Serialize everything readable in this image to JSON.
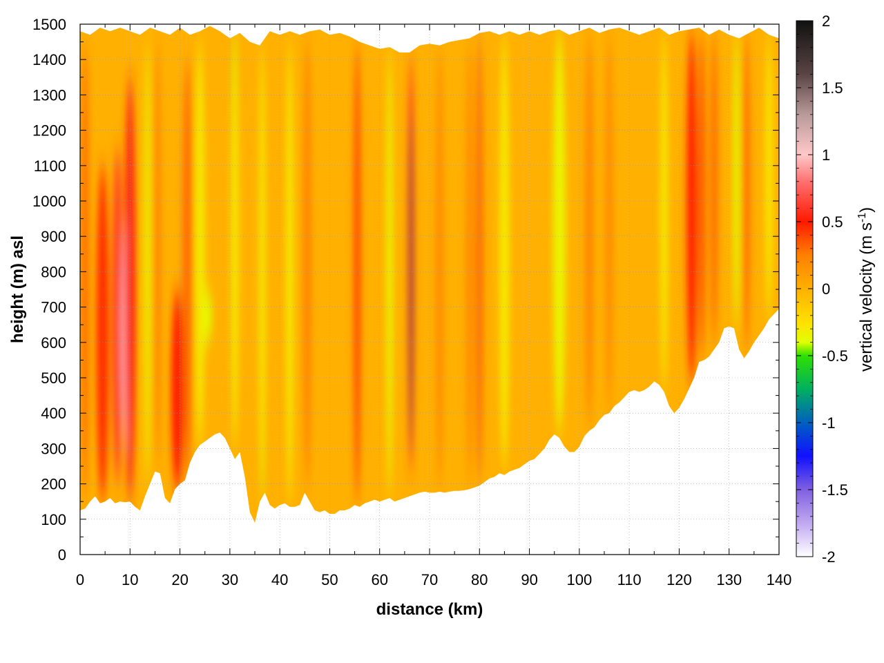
{
  "chart_data": {
    "type": "heatmap",
    "title": "",
    "xlabel": "distance (km)",
    "ylabel": "height (m) asl",
    "xlim": [
      0,
      140
    ],
    "ylim": [
      0,
      1500
    ],
    "x_ticks": [
      0,
      10,
      20,
      30,
      40,
      50,
      60,
      70,
      80,
      90,
      100,
      110,
      120,
      130,
      140
    ],
    "y_ticks": [
      0,
      100,
      200,
      300,
      400,
      500,
      600,
      700,
      800,
      900,
      1000,
      1100,
      1200,
      1300,
      1400,
      1500
    ],
    "grid": true,
    "colorbar": {
      "label_main": "vertical velocity (m s",
      "label_sup": "-1",
      "label_end": ")",
      "range": [
        -2,
        2
      ],
      "ticks": [
        "2",
        "1.5",
        "1",
        "0.5",
        "0",
        "-0.5",
        "-1",
        "-1.5",
        "-2"
      ],
      "tick_values": [
        2,
        1.5,
        1,
        0.5,
        0,
        -0.5,
        -1,
        -1.5,
        -2
      ],
      "stops": [
        {
          "value": 2.0,
          "color": "#111111"
        },
        {
          "value": 1.6,
          "color": "#5a4444"
        },
        {
          "value": 1.3,
          "color": "#b89a9a"
        },
        {
          "value": 1.0,
          "color": "#ffc8c8"
        },
        {
          "value": 0.8,
          "color": "#ff7070"
        },
        {
          "value": 0.5,
          "color": "#ff1a00"
        },
        {
          "value": 0.25,
          "color": "#ff8000"
        },
        {
          "value": 0.0,
          "color": "#ffb000"
        },
        {
          "value": -0.25,
          "color": "#ffe000"
        },
        {
          "value": -0.4,
          "color": "#e0ff00"
        },
        {
          "value": -0.5,
          "color": "#30e000"
        },
        {
          "value": -0.75,
          "color": "#00b060"
        },
        {
          "value": -1.0,
          "color": "#0060c0"
        },
        {
          "value": -1.25,
          "color": "#1010ff"
        },
        {
          "value": -1.5,
          "color": "#8060e0"
        },
        {
          "value": -1.75,
          "color": "#c0a8f0"
        },
        {
          "value": -2.0,
          "color": "#ffffff"
        }
      ]
    },
    "terrain_bottom": [
      [
        0,
        125
      ],
      [
        1,
        130
      ],
      [
        2,
        150
      ],
      [
        3,
        165
      ],
      [
        4,
        145
      ],
      [
        5,
        150
      ],
      [
        6,
        160
      ],
      [
        7,
        145
      ],
      [
        8,
        150
      ],
      [
        9,
        148
      ],
      [
        10,
        150
      ],
      [
        11,
        135
      ],
      [
        12,
        125
      ],
      [
        13,
        165
      ],
      [
        14,
        200
      ],
      [
        15,
        235
      ],
      [
        16,
        230
      ],
      [
        17,
        160
      ],
      [
        18,
        145
      ],
      [
        19,
        185
      ],
      [
        20,
        200
      ],
      [
        21,
        210
      ],
      [
        22,
        260
      ],
      [
        23,
        290
      ],
      [
        24,
        310
      ],
      [
        25,
        320
      ],
      [
        26,
        330
      ],
      [
        27,
        340
      ],
      [
        28,
        345
      ],
      [
        29,
        330
      ],
      [
        30,
        300
      ],
      [
        31,
        270
      ],
      [
        32,
        290
      ],
      [
        33,
        220
      ],
      [
        34,
        120
      ],
      [
        35,
        90
      ],
      [
        36,
        150
      ],
      [
        37,
        175
      ],
      [
        38,
        140
      ],
      [
        39,
        130
      ],
      [
        40,
        140
      ],
      [
        41,
        145
      ],
      [
        42,
        135
      ],
      [
        43,
        135
      ],
      [
        44,
        140
      ],
      [
        45,
        175
      ],
      [
        46,
        150
      ],
      [
        47,
        125
      ],
      [
        48,
        120
      ],
      [
        49,
        125
      ],
      [
        50,
        115
      ],
      [
        51,
        115
      ],
      [
        52,
        125
      ],
      [
        53,
        125
      ],
      [
        54,
        130
      ],
      [
        55,
        140
      ],
      [
        56,
        135
      ],
      [
        57,
        145
      ],
      [
        58,
        150
      ],
      [
        59,
        155
      ],
      [
        60,
        150
      ],
      [
        61,
        155
      ],
      [
        62,
        160
      ],
      [
        63,
        150
      ],
      [
        64,
        155
      ],
      [
        65,
        160
      ],
      [
        66,
        165
      ],
      [
        67,
        170
      ],
      [
        68,
        175
      ],
      [
        69,
        178
      ],
      [
        70,
        175
      ],
      [
        71,
        175
      ],
      [
        72,
        178
      ],
      [
        73,
        175
      ],
      [
        74,
        178
      ],
      [
        75,
        180
      ],
      [
        76,
        180
      ],
      [
        77,
        182
      ],
      [
        78,
        185
      ],
      [
        79,
        190
      ],
      [
        80,
        195
      ],
      [
        81,
        205
      ],
      [
        82,
        215
      ],
      [
        83,
        220
      ],
      [
        84,
        230
      ],
      [
        85,
        225
      ],
      [
        86,
        235
      ],
      [
        87,
        240
      ],
      [
        88,
        245
      ],
      [
        89,
        255
      ],
      [
        90,
        265
      ],
      [
        91,
        270
      ],
      [
        92,
        285
      ],
      [
        93,
        300
      ],
      [
        94,
        325
      ],
      [
        95,
        340
      ],
      [
        96,
        330
      ],
      [
        97,
        305
      ],
      [
        98,
        290
      ],
      [
        99,
        290
      ],
      [
        100,
        305
      ],
      [
        101,
        335
      ],
      [
        102,
        350
      ],
      [
        103,
        360
      ],
      [
        104,
        380
      ],
      [
        105,
        395
      ],
      [
        106,
        400
      ],
      [
        107,
        420
      ],
      [
        108,
        430
      ],
      [
        109,
        445
      ],
      [
        110,
        460
      ],
      [
        111,
        465
      ],
      [
        112,
        460
      ],
      [
        113,
        465
      ],
      [
        114,
        475
      ],
      [
        115,
        490
      ],
      [
        116,
        480
      ],
      [
        117,
        460
      ],
      [
        118,
        420
      ],
      [
        119,
        400
      ],
      [
        120,
        415
      ],
      [
        121,
        440
      ],
      [
        122,
        470
      ],
      [
        123,
        500
      ],
      [
        124,
        545
      ],
      [
        125,
        550
      ],
      [
        126,
        560
      ],
      [
        127,
        580
      ],
      [
        128,
        600
      ],
      [
        129,
        640
      ],
      [
        130,
        645
      ],
      [
        131,
        640
      ],
      [
        132,
        580
      ],
      [
        133,
        555
      ],
      [
        134,
        575
      ],
      [
        135,
        600
      ],
      [
        136,
        620
      ],
      [
        137,
        640
      ],
      [
        138,
        665
      ],
      [
        139,
        680
      ],
      [
        140,
        695
      ]
    ],
    "top_edge": [
      [
        0,
        1480
      ],
      [
        2,
        1470
      ],
      [
        4,
        1490
      ],
      [
        6,
        1480
      ],
      [
        8,
        1490
      ],
      [
        10,
        1480
      ],
      [
        12,
        1470
      ],
      [
        14,
        1490
      ],
      [
        16,
        1480
      ],
      [
        18,
        1470
      ],
      [
        20,
        1490
      ],
      [
        22,
        1470
      ],
      [
        24,
        1480
      ],
      [
        26,
        1495
      ],
      [
        28,
        1480
      ],
      [
        30,
        1460
      ],
      [
        32,
        1475
      ],
      [
        34,
        1450
      ],
      [
        36,
        1440
      ],
      [
        38,
        1480
      ],
      [
        40,
        1470
      ],
      [
        42,
        1480
      ],
      [
        44,
        1470
      ],
      [
        46,
        1480
      ],
      [
        48,
        1485
      ],
      [
        50,
        1470
      ],
      [
        52,
        1475
      ],
      [
        54,
        1465
      ],
      [
        56,
        1450
      ],
      [
        58,
        1440
      ],
      [
        60,
        1430
      ],
      [
        62,
        1435
      ],
      [
        64,
        1420
      ],
      [
        66,
        1420
      ],
      [
        68,
        1440
      ],
      [
        70,
        1445
      ],
      [
        72,
        1440
      ],
      [
        74,
        1450
      ],
      [
        76,
        1455
      ],
      [
        78,
        1460
      ],
      [
        80,
        1475
      ],
      [
        82,
        1480
      ],
      [
        84,
        1470
      ],
      [
        86,
        1480
      ],
      [
        88,
        1470
      ],
      [
        90,
        1480
      ],
      [
        92,
        1470
      ],
      [
        94,
        1480
      ],
      [
        96,
        1485
      ],
      [
        98,
        1470
      ],
      [
        100,
        1480
      ],
      [
        102,
        1490
      ],
      [
        104,
        1475
      ],
      [
        106,
        1485
      ],
      [
        108,
        1490
      ],
      [
        110,
        1480
      ],
      [
        112,
        1470
      ],
      [
        114,
        1480
      ],
      [
        116,
        1490
      ],
      [
        118,
        1470
      ],
      [
        120,
        1480
      ],
      [
        122,
        1485
      ],
      [
        124,
        1490
      ],
      [
        126,
        1470
      ],
      [
        128,
        1485
      ],
      [
        130,
        1470
      ],
      [
        132,
        1460
      ],
      [
        134,
        1475
      ],
      [
        136,
        1490
      ],
      [
        138,
        1470
      ],
      [
        140,
        1460
      ]
    ],
    "bands": [
      {
        "x": 1,
        "w": 1.5,
        "v": 0.3,
        "y0": 150,
        "y1": 1450
      },
      {
        "x": 4.5,
        "w": 2.5,
        "v": 0.45,
        "y0": 150,
        "y1": 1100
      },
      {
        "x": 7.5,
        "w": 2.0,
        "v": 0.6,
        "y0": 200,
        "y1": 1150
      },
      {
        "x": 9.5,
        "w": 2.5,
        "v": 1.0,
        "y0": 280,
        "y1": 1000
      },
      {
        "x": 10.0,
        "w": 2.2,
        "v": 0.55,
        "y0": 150,
        "y1": 1350
      },
      {
        "x": 13.5,
        "w": 1.2,
        "v": -0.35,
        "y0": 200,
        "y1": 1450
      },
      {
        "x": 15.5,
        "w": 1.2,
        "v": 0.25,
        "y0": 250,
        "y1": 1450
      },
      {
        "x": 19.5,
        "w": 2.5,
        "v": 0.5,
        "y0": 180,
        "y1": 750
      },
      {
        "x": 21.5,
        "w": 2.0,
        "v": 0.3,
        "y0": 200,
        "y1": 1400
      },
      {
        "x": 25,
        "w": 3.0,
        "v": -0.4,
        "y0": 600,
        "y1": 750
      },
      {
        "x": 24,
        "w": 2.0,
        "v": -0.3,
        "y0": 300,
        "y1": 1450
      },
      {
        "x": 31,
        "w": 1.2,
        "v": -0.45,
        "y0": 1050,
        "y1": 1480
      },
      {
        "x": 31,
        "w": 1.5,
        "v": -0.3,
        "y0": 300,
        "y1": 1480
      },
      {
        "x": 36.5,
        "w": 1.0,
        "v": -0.45,
        "y0": 150,
        "y1": 620
      },
      {
        "x": 36.5,
        "w": 1.3,
        "v": -0.3,
        "y0": 150,
        "y1": 1440
      },
      {
        "x": 42,
        "w": 1.5,
        "v": -0.3,
        "y0": 140,
        "y1": 1450
      },
      {
        "x": 45.5,
        "w": 1.5,
        "v": 0.25,
        "y0": 180,
        "y1": 1470
      },
      {
        "x": 55.5,
        "w": 1.3,
        "v": 0.4,
        "y0": 140,
        "y1": 1450
      },
      {
        "x": 62,
        "w": 1.3,
        "v": -0.35,
        "y0": 160,
        "y1": 1430
      },
      {
        "x": 66.3,
        "w": 1.3,
        "v": 0.6,
        "y0": 230,
        "y1": 1410
      },
      {
        "x": 66.3,
        "w": 0.7,
        "v": 1.6,
        "y0": 300,
        "y1": 1250
      },
      {
        "x": 72,
        "w": 1.5,
        "v": 0.2,
        "y0": 180,
        "y1": 1440
      },
      {
        "x": 78,
        "w": 1.5,
        "v": 0.2,
        "y0": 190,
        "y1": 1460
      },
      {
        "x": 80,
        "w": 1.5,
        "v": 0.3,
        "y0": 200,
        "y1": 1470
      },
      {
        "x": 85,
        "w": 2.0,
        "v": -0.3,
        "y0": 240,
        "y1": 1470
      },
      {
        "x": 96,
        "w": 2.5,
        "v": -0.35,
        "y0": 340,
        "y1": 1480
      },
      {
        "x": 102,
        "w": 1.5,
        "v": 0.25,
        "y0": 360,
        "y1": 1480
      },
      {
        "x": 106,
        "w": 1.5,
        "v": 0.2,
        "y0": 400,
        "y1": 1480
      },
      {
        "x": 117,
        "w": 1.5,
        "v": -0.3,
        "y0": 460,
        "y1": 1480
      },
      {
        "x": 122.5,
        "w": 2.0,
        "v": 0.5,
        "y0": 480,
        "y1": 1480
      },
      {
        "x": 124.5,
        "w": 1.5,
        "v": 0.35,
        "y0": 550,
        "y1": 1480
      },
      {
        "x": 127,
        "w": 1.5,
        "v": 0.3,
        "y0": 590,
        "y1": 1480
      },
      {
        "x": 131.5,
        "w": 1.2,
        "v": -0.4,
        "y0": 640,
        "y1": 1480
      },
      {
        "x": 133.5,
        "w": 1.3,
        "v": 0.3,
        "y0": 570,
        "y1": 1480
      },
      {
        "x": 138,
        "w": 1.5,
        "v": -0.3,
        "y0": 660,
        "y1": 1470
      }
    ],
    "background_value": 0.0
  }
}
